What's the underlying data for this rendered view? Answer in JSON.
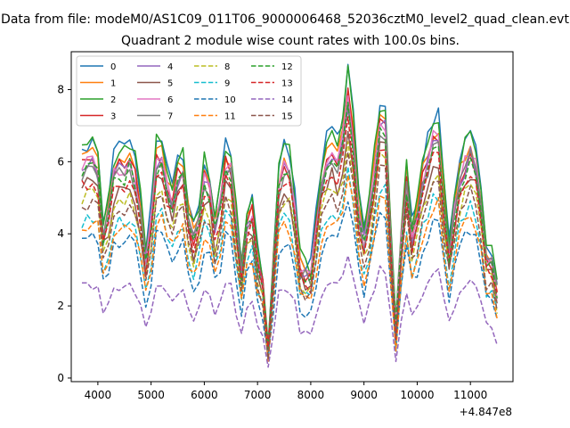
{
  "chart_data": {
    "type": "line",
    "suptitle": "Data from file: modeM0/AS1C09_011T06_9000006468_52036cztM0_level2_quad_clean.evt",
    "title": "Quadrant 2 module wise count rates with 100.0s bins.",
    "xlabel": "",
    "ylabel": "",
    "x_offset_label": "+4.847e8",
    "xlim": [
      3500,
      11800
    ],
    "ylim": [
      -0.1,
      9.05
    ],
    "x_ticks": [
      4000,
      5000,
      6000,
      7000,
      8000,
      9000,
      10000,
      11000
    ],
    "x_tick_labels": [
      "4000",
      "5000",
      "6000",
      "7000",
      "8000",
      "9000",
      "10000",
      "11000"
    ],
    "y_ticks": [
      0,
      2,
      4,
      6,
      8
    ],
    "y_tick_labels": [
      "0",
      "2",
      "4",
      "6",
      "8"
    ],
    "grid": false,
    "legend_position": "upper left",
    "legend_columns": 4,
    "x": [
      3700,
      3800,
      3900,
      4000,
      4100,
      4200,
      4300,
      4400,
      4500,
      4600,
      4700,
      4800,
      4900,
      5000,
      5100,
      5200,
      5300,
      5400,
      5500,
      5600,
      5700,
      5800,
      5900,
      6000,
      6100,
      6200,
      6300,
      6400,
      6500,
      6600,
      6700,
      6800,
      6900,
      7000,
      7100,
      7200,
      7300,
      7400,
      7500,
      7600,
      7700,
      7800,
      7900,
      8000,
      8100,
      8200,
      8300,
      8400,
      8500,
      8600,
      8700,
      8800,
      8900,
      9000,
      9100,
      9200,
      9300,
      9400,
      9500,
      9600,
      9700,
      9800,
      9900,
      10000,
      10100,
      10200,
      10300,
      10400,
      10500,
      10600,
      10700,
      10800,
      10900,
      11000,
      11100,
      11200,
      11300,
      11400,
      11500
    ],
    "series": [
      {
        "name": "0",
        "color": "#1f77b4",
        "dash": "solid",
        "base": 6.6,
        "amp": 1.0,
        "seed": 1
      },
      {
        "name": "1",
        "color": "#ff7f0e",
        "dash": "solid",
        "base": 6.2,
        "amp": 1.0,
        "seed": 2
      },
      {
        "name": "2",
        "color": "#2ca02c",
        "dash": "solid",
        "base": 6.5,
        "amp": 1.0,
        "seed": 3
      },
      {
        "name": "3",
        "color": "#d62728",
        "dash": "solid",
        "base": 6.0,
        "amp": 1.0,
        "seed": 4
      },
      {
        "name": "4",
        "color": "#9467bd",
        "dash": "solid",
        "base": 5.9,
        "amp": 1.0,
        "seed": 5
      },
      {
        "name": "5",
        "color": "#8c564b",
        "dash": "solid",
        "base": 5.4,
        "amp": 1.0,
        "seed": 6
      },
      {
        "name": "6",
        "color": "#e377c2",
        "dash": "solid",
        "base": 6.0,
        "amp": 1.0,
        "seed": 7
      },
      {
        "name": "7",
        "color": "#7f7f7f",
        "dash": "solid",
        "base": 5.8,
        "amp": 1.0,
        "seed": 8
      },
      {
        "name": "8",
        "color": "#bcbd22",
        "dash": "dashed",
        "base": 5.1,
        "amp": 0.9,
        "seed": 9
      },
      {
        "name": "9",
        "color": "#17becf",
        "dash": "dashed",
        "base": 4.5,
        "amp": 0.8,
        "seed": 10
      },
      {
        "name": "10",
        "color": "#1f77b4",
        "dash": "dashed",
        "base": 3.9,
        "amp": 0.8,
        "seed": 11
      },
      {
        "name": "11",
        "color": "#ff7f0e",
        "dash": "dashed",
        "base": 4.3,
        "amp": 0.8,
        "seed": 12
      },
      {
        "name": "12",
        "color": "#2ca02c",
        "dash": "dashed",
        "base": 5.8,
        "amp": 1.0,
        "seed": 13
      },
      {
        "name": "13",
        "color": "#d62728",
        "dash": "dashed",
        "base": 5.5,
        "amp": 0.9,
        "seed": 14
      },
      {
        "name": "14",
        "color": "#9467bd",
        "dash": "dashed",
        "base": 2.6,
        "amp": 0.5,
        "seed": 15
      },
      {
        "name": "15",
        "color": "#8c564b",
        "dash": "dashed",
        "base": 4.9,
        "amp": 0.9,
        "seed": 16
      }
    ],
    "dips": [
      {
        "x": 4100,
        "depth": 0.4
      },
      {
        "x": 4900,
        "depth": 0.45
      },
      {
        "x": 5400,
        "depth": 0.2
      },
      {
        "x": 5800,
        "depth": 0.4
      },
      {
        "x": 6200,
        "depth": 0.3
      },
      {
        "x": 6700,
        "depth": 0.5
      },
      {
        "x": 7000,
        "depth": 0.35
      },
      {
        "x": 7200,
        "depth": 0.88
      },
      {
        "x": 7800,
        "depth": 0.45
      },
      {
        "x": 8000,
        "depth": 0.55
      },
      {
        "x": 9000,
        "depth": 0.35
      },
      {
        "x": 9600,
        "depth": 0.75
      },
      {
        "x": 9900,
        "depth": 0.45
      },
      {
        "x": 10600,
        "depth": 0.45
      },
      {
        "x": 11300,
        "depth": 0.45
      },
      {
        "x": 11500,
        "depth": 0.6
      }
    ],
    "peaks": [
      {
        "x": 4000,
        "height": 0.2
      },
      {
        "x": 8700,
        "height": 0.25
      },
      {
        "x": 9400,
        "height": 0.3
      },
      {
        "x": 9800,
        "height": 0.35
      },
      {
        "x": 10400,
        "height": 0.15
      }
    ]
  }
}
